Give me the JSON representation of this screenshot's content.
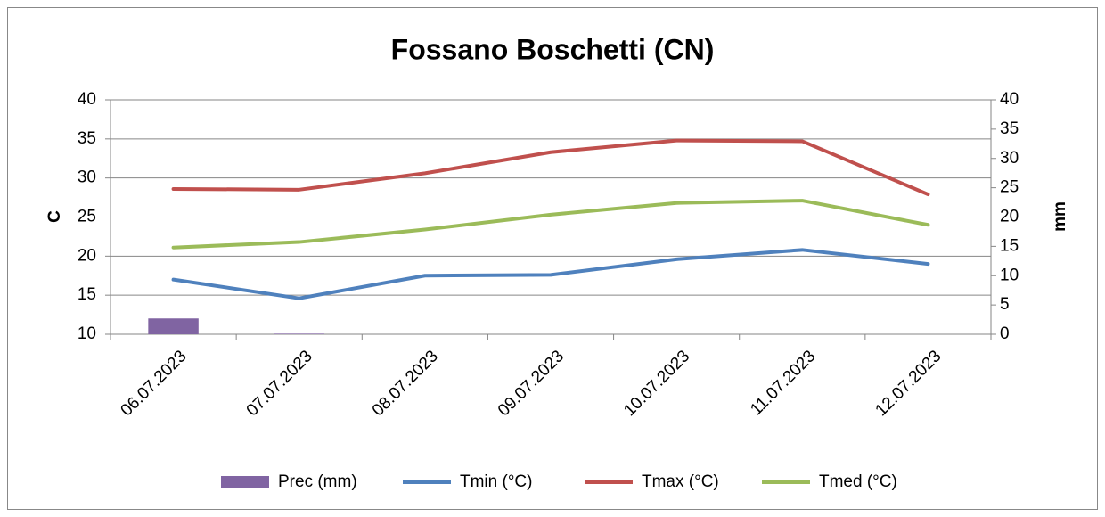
{
  "chart_data": {
    "type": "line",
    "title": "Fossano Boschetti (CN)",
    "y_label": "C",
    "y2_label": "mm",
    "categories": [
      "06.07.2023",
      "07.07.2023",
      "08.07.2023",
      "09.07.2023",
      "10.07.2023",
      "11.07.2023",
      "12.07.2023"
    ],
    "series": [
      {
        "name": "Prec (mm)",
        "type": "bar",
        "axis": "y2",
        "color": "#8064a2",
        "values": [
          2.7,
          0.1,
          0,
          0,
          0,
          0,
          0
        ]
      },
      {
        "name": "Tmin (°C)",
        "type": "line",
        "color": "#4f81bd",
        "values": [
          17.0,
          14.6,
          17.5,
          17.6,
          19.6,
          20.8,
          19.0
        ]
      },
      {
        "name": "Tmax (°C)",
        "type": "line",
        "color": "#c0504d",
        "values": [
          28.6,
          28.5,
          30.6,
          33.3,
          34.8,
          34.7,
          27.9
        ]
      },
      {
        "name": "Tmed (°C)",
        "type": "line",
        "color": "#9bbb59",
        "values": [
          21.1,
          21.8,
          23.4,
          25.3,
          26.8,
          27.1,
          24.0
        ]
      }
    ],
    "ylim": [
      10,
      40
    ],
    "yticks": [
      10,
      15,
      20,
      25,
      30,
      35,
      40
    ],
    "y2lim": [
      0,
      40
    ],
    "y2ticks": [
      0,
      5,
      10,
      15,
      20,
      25,
      30,
      35,
      40
    ],
    "grid": true,
    "legend": "bottom"
  }
}
